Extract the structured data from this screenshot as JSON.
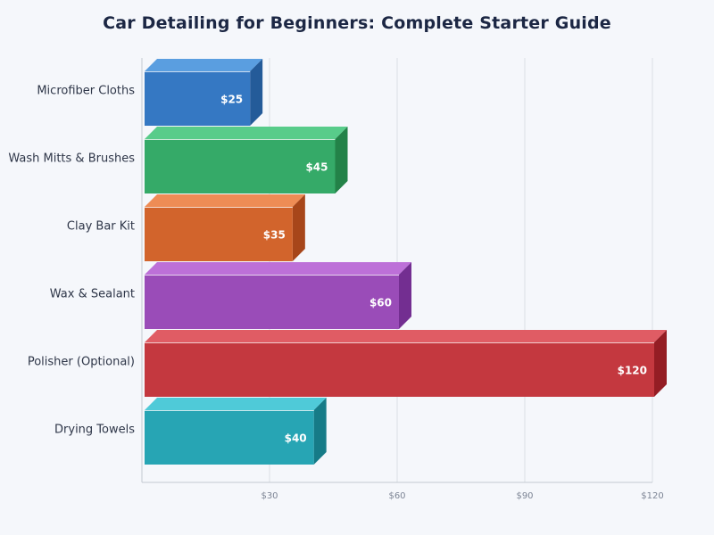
{
  "title": "Car Detailing for Beginners: Complete Starter Guide",
  "chart_data": {
    "type": "bar",
    "orientation": "horizontal",
    "style": "3d",
    "title": "Car Detailing for Beginners: Complete Starter Guide",
    "xlabel": "",
    "ylabel": "",
    "categories": [
      "Microfiber Cloths",
      "Wash Mitts & Brushes",
      "Clay Bar Kit",
      "Wax & Sealant",
      "Polisher (Optional)",
      "Drying Towels"
    ],
    "values": [
      25,
      45,
      35,
      60,
      120,
      40
    ],
    "value_labels": [
      "$25",
      "$45",
      "$35",
      "$60",
      "$120",
      "$40"
    ],
    "colors": [
      {
        "front": "#3578c3",
        "top": "#5a9ee0",
        "side": "#245b99"
      },
      {
        "front": "#35aa68",
        "top": "#58cc8a",
        "side": "#238248"
      },
      {
        "front": "#d2642c",
        "top": "#ee8c55",
        "side": "#a7461a"
      },
      {
        "front": "#9a4cb8",
        "top": "#bd70d8",
        "side": "#732e91"
      },
      {
        "front": "#c4383f",
        "top": "#e05c64",
        "side": "#941d24"
      },
      {
        "front": "#27a5b4",
        "top": "#4fcad8",
        "side": "#167b87"
      }
    ],
    "xticks": [
      30,
      60,
      90,
      120
    ],
    "xtick_labels": [
      "$30",
      "$60",
      "$90",
      "$120"
    ],
    "xlim": [
      0,
      120
    ],
    "grid": true,
    "legend": false
  }
}
